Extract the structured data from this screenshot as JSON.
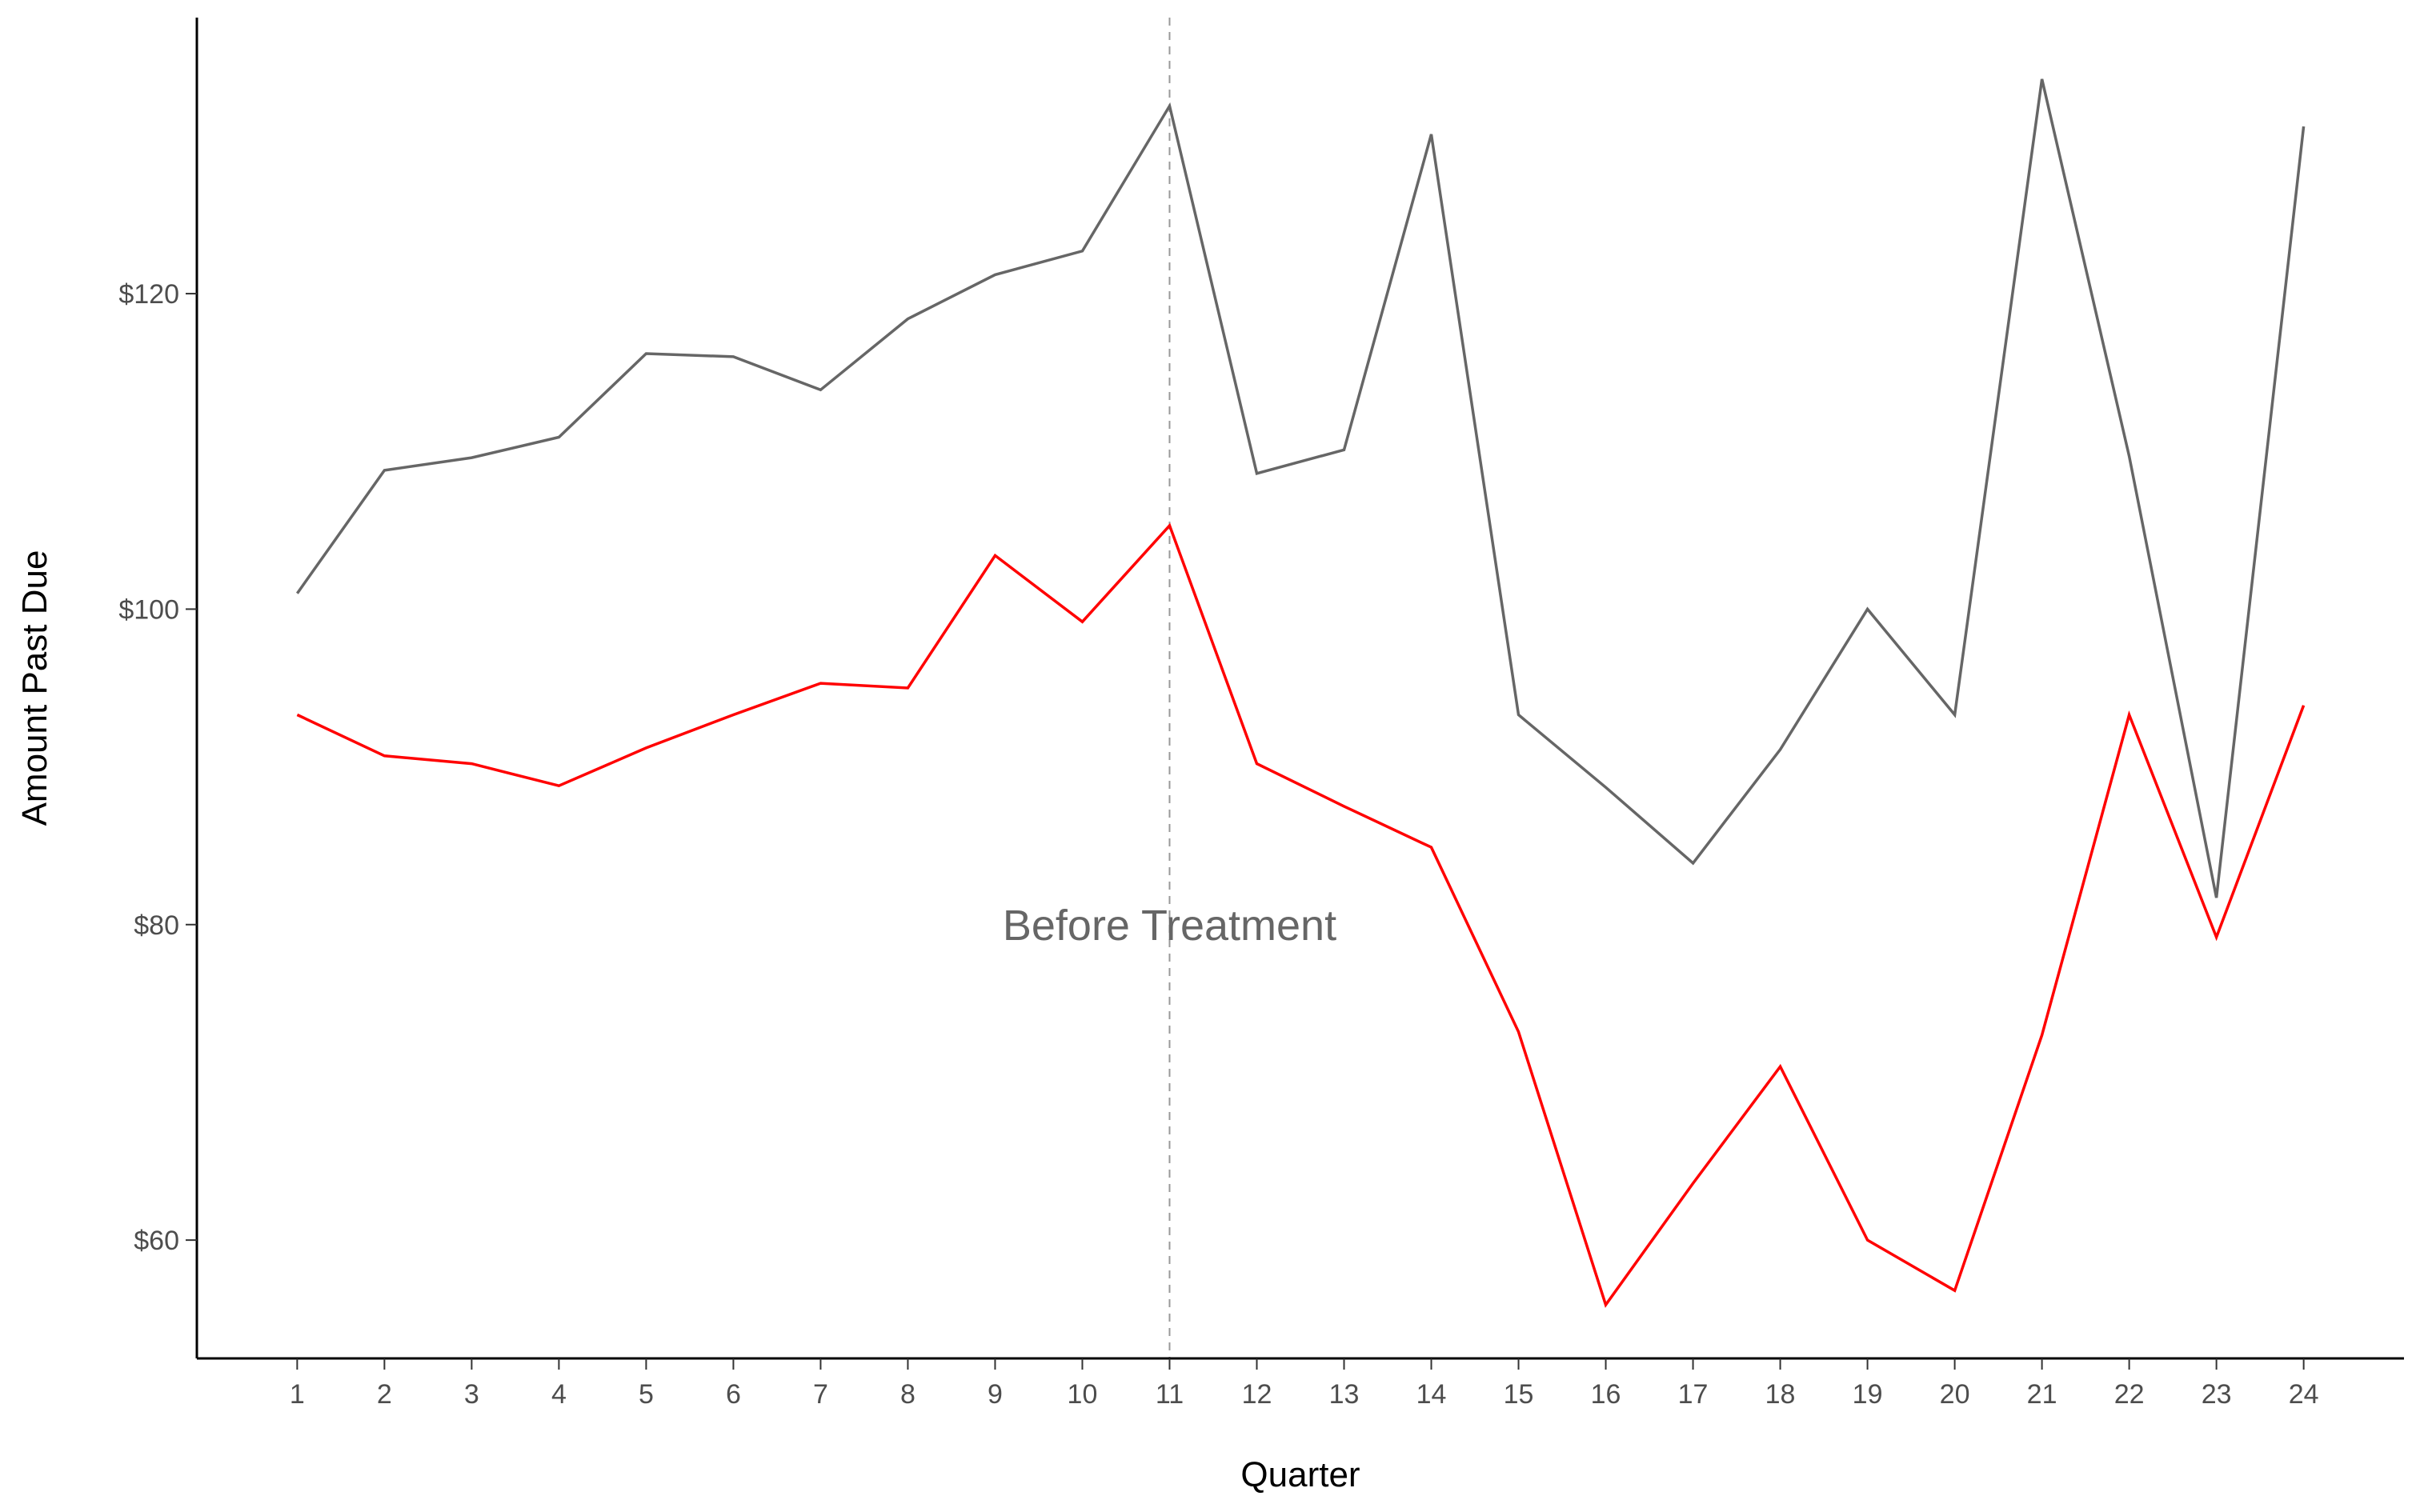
{
  "chart_data": {
    "type": "line",
    "title": "",
    "xlabel": "Quarter",
    "ylabel": "Amount Past Due",
    "x": [
      1,
      2,
      3,
      4,
      5,
      6,
      7,
      8,
      9,
      10,
      11,
      12,
      13,
      14,
      15,
      16,
      17,
      18,
      19,
      20,
      21,
      22,
      23,
      24
    ],
    "xticks": [
      "1",
      "2",
      "3",
      "4",
      "5",
      "6",
      "7",
      "8",
      "9",
      "10",
      "11",
      "12",
      "13",
      "14",
      "15",
      "16",
      "17",
      "18",
      "19",
      "20",
      "21",
      "22",
      "23",
      "24"
    ],
    "yticks": [
      {
        "value": 60,
        "label": "$60"
      },
      {
        "value": 80,
        "label": "$80"
      },
      {
        "value": 100,
        "label": "$100"
      },
      {
        "value": 120,
        "label": "$120"
      }
    ],
    "xlim": [
      -0.15,
      25.15
    ],
    "ylim": [
      52.5,
      137.5
    ],
    "grid": false,
    "legend": "none",
    "series": [
      {
        "color": "#666666",
        "values": [
          101.0,
          108.8,
          109.6,
          110.9,
          116.2,
          116.0,
          113.9,
          118.4,
          121.2,
          122.7,
          131.9,
          108.6,
          110.1,
          130.1,
          93.3,
          88.7,
          83.9,
          91.1,
          100.0,
          93.3,
          133.6,
          109.7,
          81.7,
          130.6
        ]
      },
      {
        "color": "#ff0000",
        "values": [
          93.3,
          90.7,
          90.2,
          88.8,
          91.2,
          93.3,
          95.3,
          95.0,
          103.4,
          99.2,
          105.3,
          90.2,
          87.5,
          84.9,
          73.2,
          55.9,
          63.6,
          71.0,
          60.0,
          56.8,
          73.0,
          93.3,
          79.2,
          93.9
        ]
      }
    ],
    "reference_line": {
      "x": 11,
      "style": "dashed",
      "color": "#999999"
    },
    "annotation": {
      "text": "Before Treatment",
      "x": 11,
      "y": 80
    }
  }
}
